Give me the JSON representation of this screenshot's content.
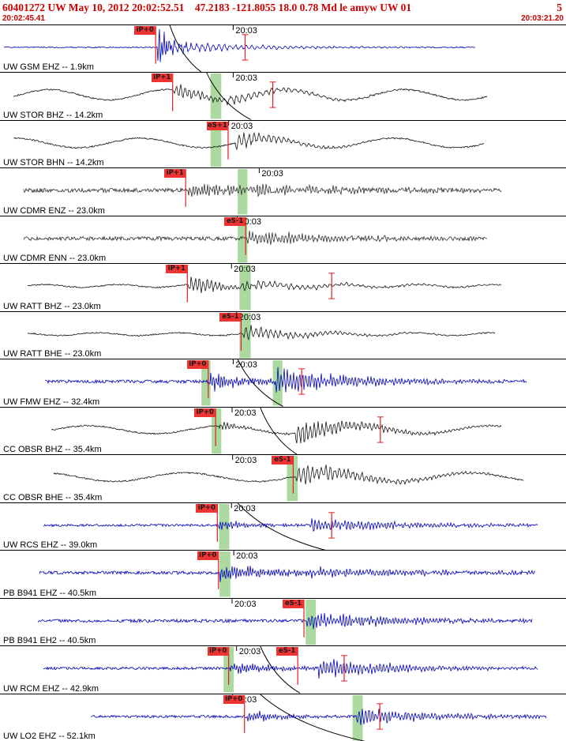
{
  "header": {
    "title": "60401272 UW May 10, 2012 20:02:52.51    47.2183 -121.8055 18.0 0.78 Md le amyw UW 01",
    "page_indicator": "5",
    "start_time": "20:02:45.41",
    "end_time": "20:03:21.20"
  },
  "minute_label": "20:03",
  "colors": {
    "header_red": "#cc0000",
    "pick_red": "#e02020",
    "flag_bg": "#ee3333",
    "band_green": "#abd9a0",
    "trace_blue": "#0000bb",
    "trace_black": "#151515",
    "trace_gray": "#303030"
  },
  "traces": [
    {
      "name": "UW GSM EHZ",
      "label": "UW GSM EHZ -- 1.9km",
      "color": "#0000bb",
      "seed": 13,
      "start": 0.007,
      "end": 0.84,
      "noise": 0.7,
      "lf": null,
      "bursts": [
        {
          "x": 0.278,
          "amp": 24,
          "decay": 16,
          "freq": 2.0
        },
        {
          "x": 0.282,
          "amp": 6,
          "decay": 120,
          "freq": 0.9
        }
      ],
      "flags": [
        {
          "label": "iP+0",
          "x": 0.275
        }
      ],
      "markers": [
        0.433
      ],
      "bands": [],
      "curve": {
        "x1": 0.3,
        "x2": 0.356
      },
      "minute_x": 0.412
    },
    {
      "name": "UW STOR BHZ",
      "label": "UW STOR BHZ -- 14.2km",
      "color": "#151515",
      "seed": 790,
      "start": 0.024,
      "end": 0.86,
      "noise": 0.9,
      "lf": {
        "amp": 6.5,
        "period": 150,
        "phase": 2.1
      },
      "bursts": [
        {
          "x": 0.306,
          "amp": 9,
          "decay": 45,
          "freq": 1.15
        },
        {
          "x": 0.4,
          "amp": 5,
          "decay": 90,
          "freq": 0.85
        }
      ],
      "flags": [
        {
          "label": "iP+1",
          "x": 0.305
        }
      ],
      "markers": [
        0.482
      ],
      "bands": [
        {
          "x": 0.372,
          "w": 0.019
        }
      ],
      "curve": {
        "x1": 0.365,
        "x2": 0.443
      },
      "minute_x": 0.412
    },
    {
      "name": "UW STOR BHN",
      "label": "UW STOR BHN -- 14.2km",
      "color": "#151515",
      "seed": 1567,
      "start": 0.024,
      "end": 0.855,
      "noise": 0.9,
      "lf": {
        "amp": 6.0,
        "period": 160,
        "phase": 4.0
      },
      "bursts": [
        {
          "x": 0.416,
          "amp": 9,
          "decay": 55,
          "freq": 1.0
        }
      ],
      "flags": [
        {
          "label": "eS+1",
          "x": 0.403
        }
      ],
      "markers": [],
      "bands": [
        {
          "x": 0.372,
          "w": 0.019
        }
      ],
      "curve": null,
      "minute_x": 0.404
    },
    {
      "name": "UW CDMR ENZ",
      "label": "UW CDMR ENZ -- 23.0km",
      "color": "#303030",
      "seed": 2344,
      "start": 0.042,
      "end": 0.885,
      "noise": 2.6,
      "lf": null,
      "bursts": [
        {
          "x": 0.332,
          "amp": 6,
          "decay": 140,
          "freq": 1.7
        },
        {
          "x": 0.42,
          "amp": 5,
          "decay": 160,
          "freq": 1.5
        }
      ],
      "flags": [
        {
          "label": "iP+1",
          "x": 0.328
        }
      ],
      "markers": [],
      "bands": [
        {
          "x": 0.42,
          "w": 0.017
        }
      ],
      "curve": null,
      "minute_x": 0.458
    },
    {
      "name": "UW CDMR ENN",
      "label": "UW CDMR ENN -- 23.0km",
      "color": "#303030",
      "seed": 3121,
      "start": 0.042,
      "end": 0.86,
      "noise": 2.4,
      "lf": null,
      "bursts": [
        {
          "x": 0.436,
          "amp": 7,
          "decay": 120,
          "freq": 1.5
        }
      ],
      "flags": [
        {
          "label": "eS-1",
          "x": 0.434
        }
      ],
      "markers": [],
      "bands": [
        {
          "x": 0.42,
          "w": 0.017
        }
      ],
      "curve": null,
      "minute_x": 0.419
    },
    {
      "name": "UW RATT BHZ",
      "label": "UW RATT BHZ -- 23.0km",
      "color": "#151515",
      "seed": 3898,
      "start": 0.049,
      "end": 0.885,
      "noise": 0.8,
      "lf": {
        "amp": 1.8,
        "period": 95,
        "phase": 1.0
      },
      "bursts": [
        {
          "x": 0.333,
          "amp": 9,
          "decay": 55,
          "freq": 1.25
        },
        {
          "x": 0.42,
          "amp": 4,
          "decay": 130,
          "freq": 0.9
        }
      ],
      "flags": [
        {
          "label": "iP+1",
          "x": 0.331
        }
      ],
      "markers": [
        0.586
      ],
      "bands": [
        {
          "x": 0.423,
          "w": 0.02
        }
      ],
      "curve": null,
      "minute_x": 0.409
    },
    {
      "name": "UW RATT BHE",
      "label": "UW RATT BHE -- 23.0km",
      "color": "#151515",
      "seed": 4675,
      "start": 0.049,
      "end": 0.875,
      "noise": 0.8,
      "lf": {
        "amp": 1.8,
        "period": 100,
        "phase": 3.2
      },
      "bursts": [
        {
          "x": 0.428,
          "amp": 7,
          "decay": 85,
          "freq": 1.0
        }
      ],
      "flags": [
        {
          "label": "eS-1",
          "x": 0.426
        }
      ],
      "markers": [],
      "bands": [
        {
          "x": 0.423,
          "w": 0.02
        }
      ],
      "curve": null,
      "minute_x": 0.418
    },
    {
      "name": "UW FMW EHZ",
      "label": "UW FMW EHZ -- 32.4km",
      "color": "#0000bb",
      "seed": 5452,
      "start": 0.08,
      "end": 0.93,
      "noise": 2.0,
      "lf": null,
      "bursts": [
        {
          "x": 0.369,
          "amp": 9,
          "decay": 55,
          "freq": 1.9
        },
        {
          "x": 0.487,
          "amp": 13,
          "decay": 110,
          "freq": 1.6
        }
      ],
      "flags": [
        {
          "label": "iP+0",
          "x": 0.368
        }
      ],
      "markers": [
        0.533
      ],
      "bands": [
        {
          "x": 0.356,
          "w": 0.016
        },
        {
          "x": 0.482,
          "w": 0.017
        }
      ],
      "curve": {
        "x1": 0.42,
        "x2": 0.5
      },
      "minute_x": 0.412
    },
    {
      "name": "CC OBSR BHZ",
      "label": "CC OBSR BHZ -- 35.4km",
      "color": "#151515",
      "seed": 6229,
      "start": 0.09,
      "end": 0.885,
      "noise": 0.9,
      "lf": {
        "amp": 5.0,
        "period": 170,
        "phase": 0.6
      },
      "bursts": [
        {
          "x": 0.386,
          "amp": 4,
          "decay": 45,
          "freq": 1.5
        },
        {
          "x": 0.522,
          "amp": 13,
          "decay": 75,
          "freq": 1.25
        }
      ],
      "flags": [
        {
          "label": "iP+0",
          "x": 0.381
        }
      ],
      "markers": [
        0.672
      ],
      "bands": [
        {
          "x": 0.374,
          "w": 0.017
        }
      ],
      "curve": {
        "x1": 0.46,
        "x2": 0.525
      },
      "minute_x": 0.41
    },
    {
      "name": "CC OBSR BHE",
      "label": "CC OBSR BHE -- 35.4km",
      "color": "#151515",
      "seed": 7006,
      "start": 0.095,
      "end": 0.925,
      "noise": 0.9,
      "lf": {
        "amp": 5.5,
        "period": 180,
        "phase": 2.8
      },
      "bursts": [
        {
          "x": 0.522,
          "amp": 11,
          "decay": 90,
          "freq": 1.1
        }
      ],
      "flags": [
        {
          "label": "eS-1",
          "x": 0.518
        }
      ],
      "markers": [],
      "bands": [
        {
          "x": 0.507,
          "w": 0.019
        }
      ],
      "curve": null,
      "minute_x": 0.411
    },
    {
      "name": "UW RCS EHZ",
      "label": "UW RCS EHZ -- 39.0km",
      "color": "#0000bb",
      "seed": 7783,
      "start": 0.077,
      "end": 0.95,
      "noise": 1.5,
      "lf": null,
      "bursts": [
        {
          "x": 0.386,
          "amp": 5,
          "decay": 50,
          "freq": 1.9
        },
        {
          "x": 0.547,
          "amp": 7,
          "decay": 130,
          "freq": 1.5
        }
      ],
      "flags": [
        {
          "label": "iP+0",
          "x": 0.384
        }
      ],
      "markers": [
        0.586
      ],
      "bands": [
        {
          "x": 0.387,
          "w": 0.018
        }
      ],
      "curve": {
        "x1": 0.42,
        "x2": 0.575
      },
      "minute_x": 0.409
    },
    {
      "name": "PB B941 EHZ",
      "label": "PB B941 EHZ -- 40.5km",
      "color": "#0000bb",
      "seed": 8560,
      "start": 0.07,
      "end": 0.945,
      "noise": 2.0,
      "lf": null,
      "bursts": [
        {
          "x": 0.388,
          "amp": 8,
          "decay": 90,
          "freq": 1.9
        },
        {
          "x": 0.55,
          "amp": 4,
          "decay": 200,
          "freq": 1.5
        }
      ],
      "flags": [
        {
          "label": "iP+0",
          "x": 0.386
        }
      ],
      "markers": [],
      "bands": [
        {
          "x": 0.388,
          "w": 0.019
        }
      ],
      "curve": null,
      "minute_x": 0.413
    },
    {
      "name": "PB B941 EH2",
      "label": "PB B941 EH2 -- 40.5km",
      "color": "#0000bb",
      "seed": 9337,
      "start": 0.067,
      "end": 0.94,
      "noise": 2.0,
      "lf": null,
      "bursts": [
        {
          "x": 0.542,
          "amp": 9,
          "decay": 120,
          "freq": 1.6
        }
      ],
      "flags": [
        {
          "label": "eS-1",
          "x": 0.537
        }
      ],
      "markers": [],
      "bands": [
        {
          "x": 0.54,
          "w": 0.018
        }
      ],
      "curve": null,
      "minute_x": 0.41
    },
    {
      "name": "UW RCM EHZ",
      "label": "UW RCM EHZ -- 42.9km",
      "color": "#0000bb",
      "seed": 10114,
      "start": 0.077,
      "end": 0.95,
      "noise": 1.6,
      "lf": null,
      "bursts": [
        {
          "x": 0.406,
          "amp": 6,
          "decay": 60,
          "freq": 1.9
        },
        {
          "x": 0.562,
          "amp": 9,
          "decay": 110,
          "freq": 1.5
        }
      ],
      "flags": [
        {
          "label": "iP+0",
          "x": 0.404
        },
        {
          "label": "eS-1",
          "x": 0.526
        }
      ],
      "markers": [
        0.608
      ],
      "bands": [
        {
          "x": 0.395,
          "w": 0.018
        }
      ],
      "curve": {
        "x1": 0.46,
        "x2": 0.53
      },
      "minute_x": 0.418
    },
    {
      "name": "UW LO2 EHZ",
      "label": "UW LO2 EHZ -- 52.1km",
      "color": "#0000bb",
      "seed": 10891,
      "start": 0.16,
      "end": 0.965,
      "noise": 1.6,
      "lf": null,
      "bursts": [
        {
          "x": 0.437,
          "amp": 5,
          "decay": 55,
          "freq": 1.9
        },
        {
          "x": 0.63,
          "amp": 9,
          "decay": 100,
          "freq": 1.5
        }
      ],
      "flags": [
        {
          "label": "iP+0",
          "x": 0.432
        }
      ],
      "markers": [
        0.671
      ],
      "bands": [
        {
          "x": 0.623,
          "w": 0.018
        }
      ],
      "curve": {
        "x1": 0.46,
        "x2": 0.645
      },
      "minute_x": 0.411
    }
  ]
}
